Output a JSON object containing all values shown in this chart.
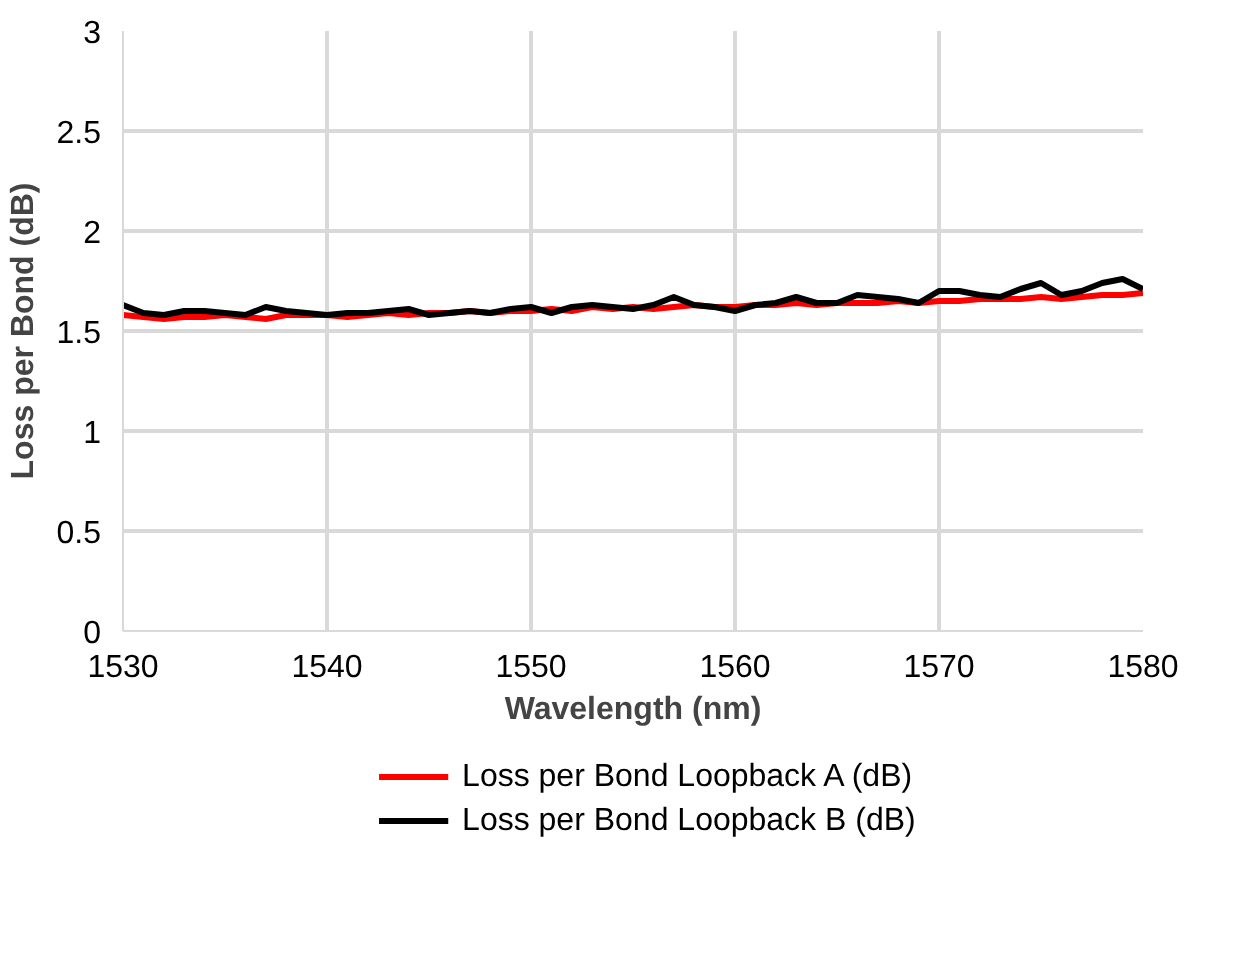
{
  "chart_data": {
    "type": "line",
    "xlabel": "Wavelength (nm)",
    "ylabel": "Loss per Bond (dB)",
    "xlim": [
      1530,
      1580
    ],
    "xticks": [
      1530,
      1540,
      1550,
      1560,
      1570,
      1580
    ],
    "ylim": [
      0,
      3
    ],
    "yticks": [
      0,
      0.5,
      1,
      1.5,
      2,
      2.5,
      3
    ],
    "grid": true,
    "legend": "bottom",
    "x": [
      1530,
      1531,
      1532,
      1533,
      1534,
      1535,
      1536,
      1537,
      1538,
      1539,
      1540,
      1541,
      1542,
      1543,
      1544,
      1545,
      1546,
      1547,
      1548,
      1549,
      1550,
      1551,
      1552,
      1553,
      1554,
      1555,
      1556,
      1557,
      1558,
      1559,
      1560,
      1561,
      1562,
      1563,
      1564,
      1565,
      1566,
      1567,
      1568,
      1569,
      1570,
      1571,
      1572,
      1573,
      1574,
      1575,
      1576,
      1577,
      1578,
      1579,
      1580
    ],
    "series": [
      {
        "name": "Loss per Bond Loopback A (dB)",
        "color": "#ff0000",
        "values": [
          1.58,
          1.57,
          1.56,
          1.57,
          1.57,
          1.58,
          1.57,
          1.56,
          1.58,
          1.58,
          1.58,
          1.57,
          1.58,
          1.59,
          1.58,
          1.59,
          1.59,
          1.6,
          1.59,
          1.6,
          1.6,
          1.61,
          1.6,
          1.62,
          1.61,
          1.62,
          1.61,
          1.62,
          1.63,
          1.62,
          1.62,
          1.63,
          1.63,
          1.64,
          1.63,
          1.64,
          1.64,
          1.64,
          1.65,
          1.64,
          1.65,
          1.65,
          1.66,
          1.66,
          1.66,
          1.67,
          1.66,
          1.67,
          1.68,
          1.68,
          1.69
        ]
      },
      {
        "name": "Loss per Bond Loopback B (dB)",
        "color": "#000000",
        "values": [
          1.63,
          1.59,
          1.58,
          1.6,
          1.6,
          1.59,
          1.58,
          1.62,
          1.6,
          1.59,
          1.58,
          1.59,
          1.59,
          1.6,
          1.61,
          1.58,
          1.59,
          1.6,
          1.59,
          1.61,
          1.62,
          1.59,
          1.62,
          1.63,
          1.62,
          1.61,
          1.63,
          1.67,
          1.63,
          1.62,
          1.6,
          1.63,
          1.64,
          1.67,
          1.64,
          1.64,
          1.68,
          1.67,
          1.66,
          1.64,
          1.7,
          1.7,
          1.68,
          1.67,
          1.71,
          1.74,
          1.68,
          1.7,
          1.74,
          1.76,
          1.71
        ]
      }
    ]
  }
}
